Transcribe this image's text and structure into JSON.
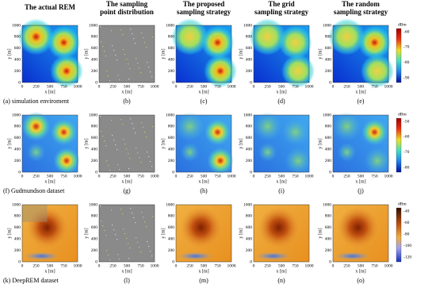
{
  "column_titles": [
    [
      "The actual REM"
    ],
    [
      "The sampling",
      "point distribution"
    ],
    [
      "The proposed",
      "sampling strategy"
    ],
    [
      "The grid",
      "sampling strategy"
    ],
    [
      "The random",
      "sampling strategy"
    ]
  ],
  "axes": {
    "x_label": "x [m]",
    "y_label": "y [m]",
    "x_ticks": [
      "0",
      "250",
      "500",
      "750",
      "1000"
    ],
    "y_ticks": [
      "0",
      "200",
      "400",
      "600",
      "800",
      "1000"
    ]
  },
  "rows": [
    {
      "captions": [
        "(a) simulation enviroment",
        "(b)",
        "(c)",
        "(d)",
        "(e)"
      ],
      "colorbar": {
        "unit": "dBm",
        "ticks": [
          "-60",
          "-70",
          "-80",
          "-90"
        ]
      }
    },
    {
      "captions": [
        "(f) Gudmundson dataset",
        "(g)",
        "(h)",
        "(i)",
        "(j)"
      ],
      "colorbar": {
        "unit": "dBm",
        "ticks": [
          "-50",
          "-60",
          "-70",
          "-80"
        ]
      }
    },
    {
      "captions": [
        "(k) DeepREM dataset",
        "(l)",
        "(m)",
        "(n)",
        "(o)"
      ],
      "colorbar": {
        "unit": "dBm",
        "ticks": [
          "-40",
          "-60",
          "-80",
          "-100",
          "-120"
        ]
      }
    }
  ]
}
